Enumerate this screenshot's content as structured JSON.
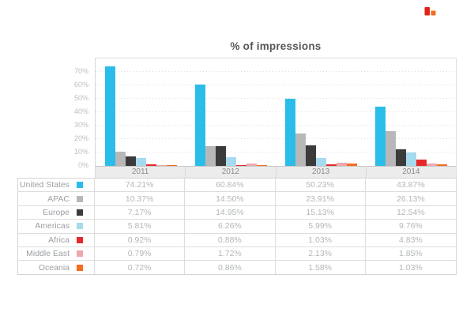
{
  "logo_icon": {
    "label": "brand-logo",
    "colors": [
      "#E2231A",
      "#F36C21"
    ]
  },
  "chart_data": {
    "type": "bar",
    "title": "% of impressions",
    "categories": [
      "2011",
      "2012",
      "2013",
      "2014"
    ],
    "series": [
      {
        "name": "United States",
        "color": "#2BBDE9",
        "values": [
          "74.21%",
          "60.84%",
          "50.23%",
          "43.87%"
        ]
      },
      {
        "name": "APAC",
        "color": "#B8B8B8",
        "values": [
          "10.37%",
          "14.50%",
          "23.91%",
          "26.13%"
        ]
      },
      {
        "name": "Europe",
        "color": "#3B3B3B",
        "values": [
          "7.17%",
          "14.95%",
          "15.13%",
          "12.54%"
        ]
      },
      {
        "name": "Americas",
        "color": "#A6DAEF",
        "values": [
          "5.81%",
          "6.26%",
          "5.99%",
          "9.76%"
        ]
      },
      {
        "name": "Africa",
        "color": "#E6292B",
        "values": [
          "0.92%",
          "0.88%",
          "1.03%",
          "4.83%"
        ]
      },
      {
        "name": "Middle East",
        "color": "#EDA8AE",
        "values": [
          "0.79%",
          "1.72%",
          "2.13%",
          "1.85%"
        ]
      },
      {
        "name": "Oceania",
        "color": "#F36C21",
        "values": [
          "0.72%",
          "0.86%",
          "1.58%",
          "1.03%"
        ]
      }
    ],
    "y_axis": {
      "tick_labels": [
        "0%",
        "10%",
        "20%",
        "30%",
        "40%",
        "50%",
        "60%",
        "70%"
      ],
      "min": 0,
      "max": 80,
      "grid_style": "dotted"
    },
    "legend_position": "table-below-chart"
  }
}
